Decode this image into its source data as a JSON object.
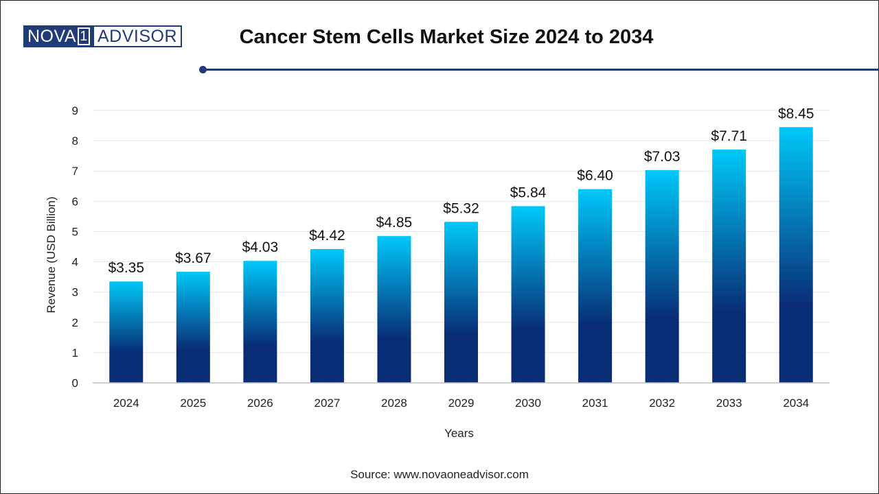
{
  "brand": {
    "logo_left": "NOVA",
    "logo_one": "1",
    "logo_right": "ADVISOR"
  },
  "header": {
    "title": "Cancer Stem Cells Market Size 2024 to 2034"
  },
  "footer": {
    "source": "Source: www.novaoneadvisor.com"
  },
  "colors": {
    "brand": "#1f3b78",
    "bar_top": "#00c8f8",
    "bar_bottom": "#082d75"
  },
  "chart_data": {
    "type": "bar",
    "title": "Cancer Stem Cells Market Size 2024 to 2034",
    "xlabel": "Years",
    "ylabel": "Revenue (USD Billion)",
    "categories": [
      "2024",
      "2025",
      "2026",
      "2027",
      "2028",
      "2029",
      "2030",
      "2031",
      "2032",
      "2033",
      "2034"
    ],
    "values": [
      3.35,
      3.67,
      4.03,
      4.42,
      4.85,
      5.32,
      5.84,
      6.4,
      7.03,
      7.71,
      8.45
    ],
    "value_labels": [
      "$3.35",
      "$3.67",
      "$4.03",
      "$4.42",
      "$4.85",
      "$5.32",
      "$5.84",
      "$6.40",
      "$7.03",
      "$7.71",
      "$8.45"
    ],
    "ylim": [
      0,
      9
    ],
    "yticks": [
      "0",
      "1",
      "2",
      "3",
      "4",
      "5",
      "6",
      "7",
      "8",
      "9"
    ],
    "grid": true,
    "legend": "none"
  }
}
